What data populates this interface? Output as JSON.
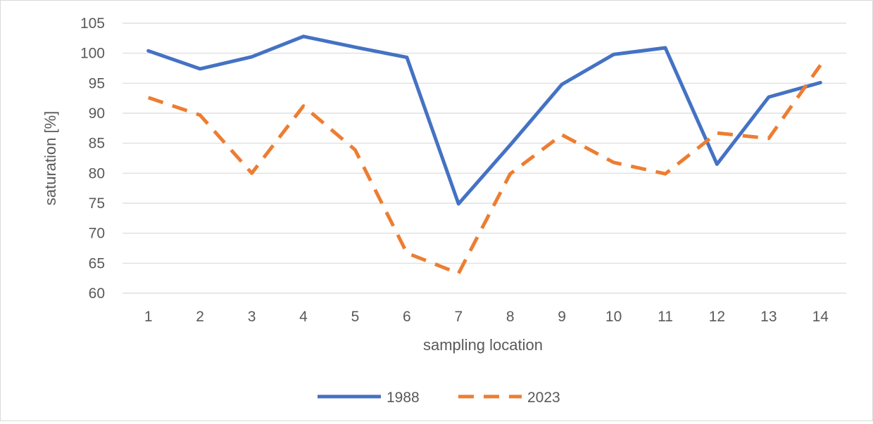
{
  "chart_data": {
    "type": "line",
    "title": "",
    "xlabel": "sampling location",
    "ylabel": "saturation [%]",
    "categories": [
      "1",
      "2",
      "3",
      "4",
      "5",
      "6",
      "7",
      "8",
      "9",
      "10",
      "11",
      "12",
      "13",
      "14"
    ],
    "ylim": [
      60,
      105
    ],
    "yticks": [
      "60",
      "65",
      "70",
      "75",
      "80",
      "85",
      "90",
      "95",
      "100",
      "105"
    ],
    "grid": "horizontal",
    "legend_position": "bottom",
    "series": [
      {
        "name": "1988",
        "color": "#4472c4",
        "style": "solid",
        "values": [
          100.4,
          97.4,
          99.4,
          102.8,
          101.0,
          99.3,
          74.9,
          84.7,
          94.8,
          99.8,
          100.9,
          81.5,
          92.7,
          95.1
        ]
      },
      {
        "name": "2023",
        "color": "#ed7d31",
        "style": "dashed",
        "values": [
          92.6,
          89.7,
          80.0,
          91.2,
          83.9,
          66.7,
          63.3,
          79.9,
          86.4,
          81.8,
          79.9,
          86.7,
          85.8,
          98.0
        ]
      }
    ]
  }
}
